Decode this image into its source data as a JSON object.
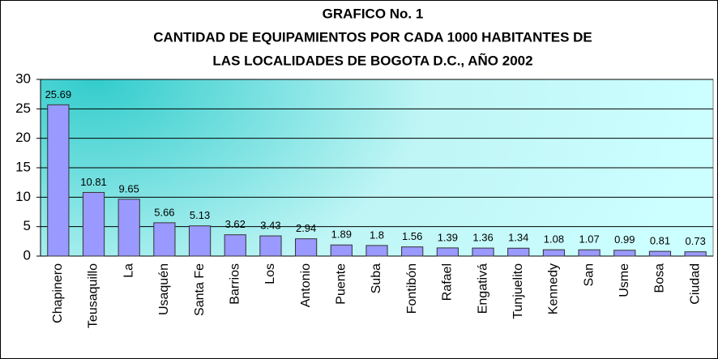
{
  "chart_data": {
    "type": "bar",
    "title": [
      "GRAFICO No. 1",
      "CANTIDAD DE EQUIPAMIENTOS POR CADA 1000 HABITANTES DE",
      "LAS LOCALIDADES DE BOGOTA D.C., AÑO 2002"
    ],
    "categories": [
      "Chapinero",
      "Teusaquillo",
      "La",
      "Usaquén",
      "Santa Fe",
      "Barrios",
      "Los",
      "Antonio",
      "Puente",
      "Suba",
      "Fontibón",
      "Rafael",
      "Engativá",
      "Tunjuelito",
      "Kennedy",
      "San",
      "Usme",
      "Bosa",
      "Ciudad"
    ],
    "values": [
      25.69,
      10.81,
      9.65,
      5.66,
      5.13,
      3.62,
      3.43,
      2.94,
      1.89,
      1.8,
      1.56,
      1.39,
      1.36,
      1.34,
      1.08,
      1.07,
      0.99,
      0.81,
      0.73
    ],
    "color": "#9999ff",
    "ylim": [
      0,
      30
    ],
    "yticks": [
      0,
      5,
      10,
      15,
      20,
      25,
      30
    ],
    "grid": true
  }
}
